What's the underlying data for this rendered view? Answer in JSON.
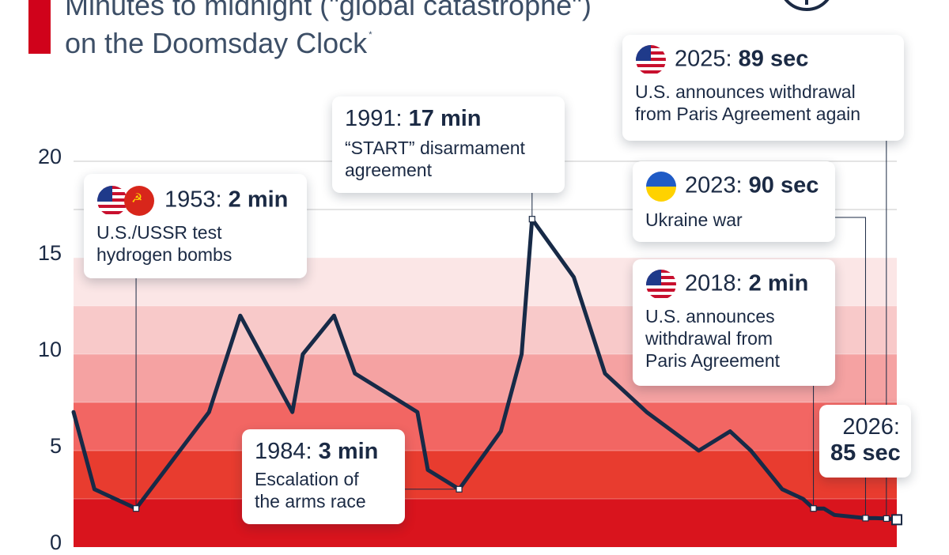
{
  "title": {
    "line1": "Minutes to midnight (\"global catastrophe\")",
    "line2": "on the Doomsday Clock",
    "footnote_mark": "*"
  },
  "colors": {
    "title_accent": "#d0021b",
    "line": "#172a47",
    "band_fills": [
      "#d9141d",
      "#e83c2f",
      "#f26663",
      "#f5a2a2",
      "#f8c9c9",
      "#fbe6e6"
    ],
    "grid": "#c9c9c9"
  },
  "chart_data": {
    "type": "line",
    "title": "Minutes to midnight (\"global catastrophe\") on the Doomsday Clock",
    "xlabel": "",
    "ylabel": "",
    "ylim": [
      0,
      20
    ],
    "xlim": [
      1947,
      2026
    ],
    "y_ticks": [
      "0",
      "5",
      "10",
      "15",
      "20"
    ],
    "grid": true,
    "background_bands": [
      [
        0,
        2.5
      ],
      [
        2.5,
        5
      ],
      [
        5,
        7.5
      ],
      [
        7.5,
        10
      ],
      [
        10,
        12.5
      ],
      [
        12.5,
        15
      ]
    ],
    "series": [
      {
        "x": [
          1947,
          1949,
          1953,
          1960,
          1963,
          1968,
          1969,
          1972,
          1974,
          1980,
          1981,
          1984,
          1988,
          1990,
          1991,
          1995,
          1998,
          2002,
          2007,
          2010,
          2012,
          2015,
          2017,
          2018,
          2019,
          2020,
          2023,
          2024,
          2025,
          2026
        ],
        "y": [
          7,
          3,
          2,
          7,
          12,
          7,
          10,
          12,
          9,
          7,
          4,
          3,
          6,
          10,
          17,
          14,
          9,
          7,
          5,
          6,
          5,
          3,
          2.5,
          2,
          2,
          1.67,
          1.5,
          1.5,
          1.48,
          1.42
        ]
      }
    ],
    "annotations": [
      {
        "year": "1953",
        "value": "2 min",
        "text": "U.S./USSR test hydrogen bombs",
        "flags": [
          "us-flag",
          "ussr-flag"
        ]
      },
      {
        "year": "1984",
        "value": "3 min",
        "text": "Escalation of the arms race",
        "flags": []
      },
      {
        "year": "1991",
        "value": "17 min",
        "text": "“START” disarmament agreement",
        "flags": []
      },
      {
        "year": "2018",
        "value": "2 min",
        "text": "U.S. announces withdrawal from Paris Agreement",
        "flags": [
          "us-flag"
        ]
      },
      {
        "year": "2023",
        "value": "90 sec",
        "text": "Ukraine war",
        "flags": [
          "ukraine-flag"
        ]
      },
      {
        "year": "2025",
        "value": "89 sec",
        "text": "U.S. announces withdrawal from Paris Agreement again",
        "flags": [
          "us-flag"
        ]
      },
      {
        "year": "2026",
        "value": "85 sec",
        "text": "",
        "flags": []
      }
    ]
  },
  "cards": {
    "c1953": {
      "year": "1953:",
      "value": "2 min",
      "desc1": "U.S./USSR test",
      "desc2": "hydrogen bombs"
    },
    "c1984": {
      "year": "1984:",
      "value": "3 min",
      "desc1": "Escalation of",
      "desc2": "the arms race"
    },
    "c1991": {
      "year": "1991:",
      "value": "17 min",
      "desc1": "“START” disarmament",
      "desc2": "agreement"
    },
    "c2025": {
      "year": "2025:",
      "value": "89 sec",
      "desc1": "U.S. announces withdrawal",
      "desc2": "from Paris Agreement again"
    },
    "c2023": {
      "year": "2023:",
      "value": "90 sec",
      "desc1": "Ukraine war"
    },
    "c2018": {
      "year": "2018:",
      "value": "2 min",
      "desc1": "U.S. announces",
      "desc2": "withdrawal from",
      "desc3": "Paris Agreement"
    },
    "c2026": {
      "year": "2026:",
      "value": "85 sec"
    }
  }
}
